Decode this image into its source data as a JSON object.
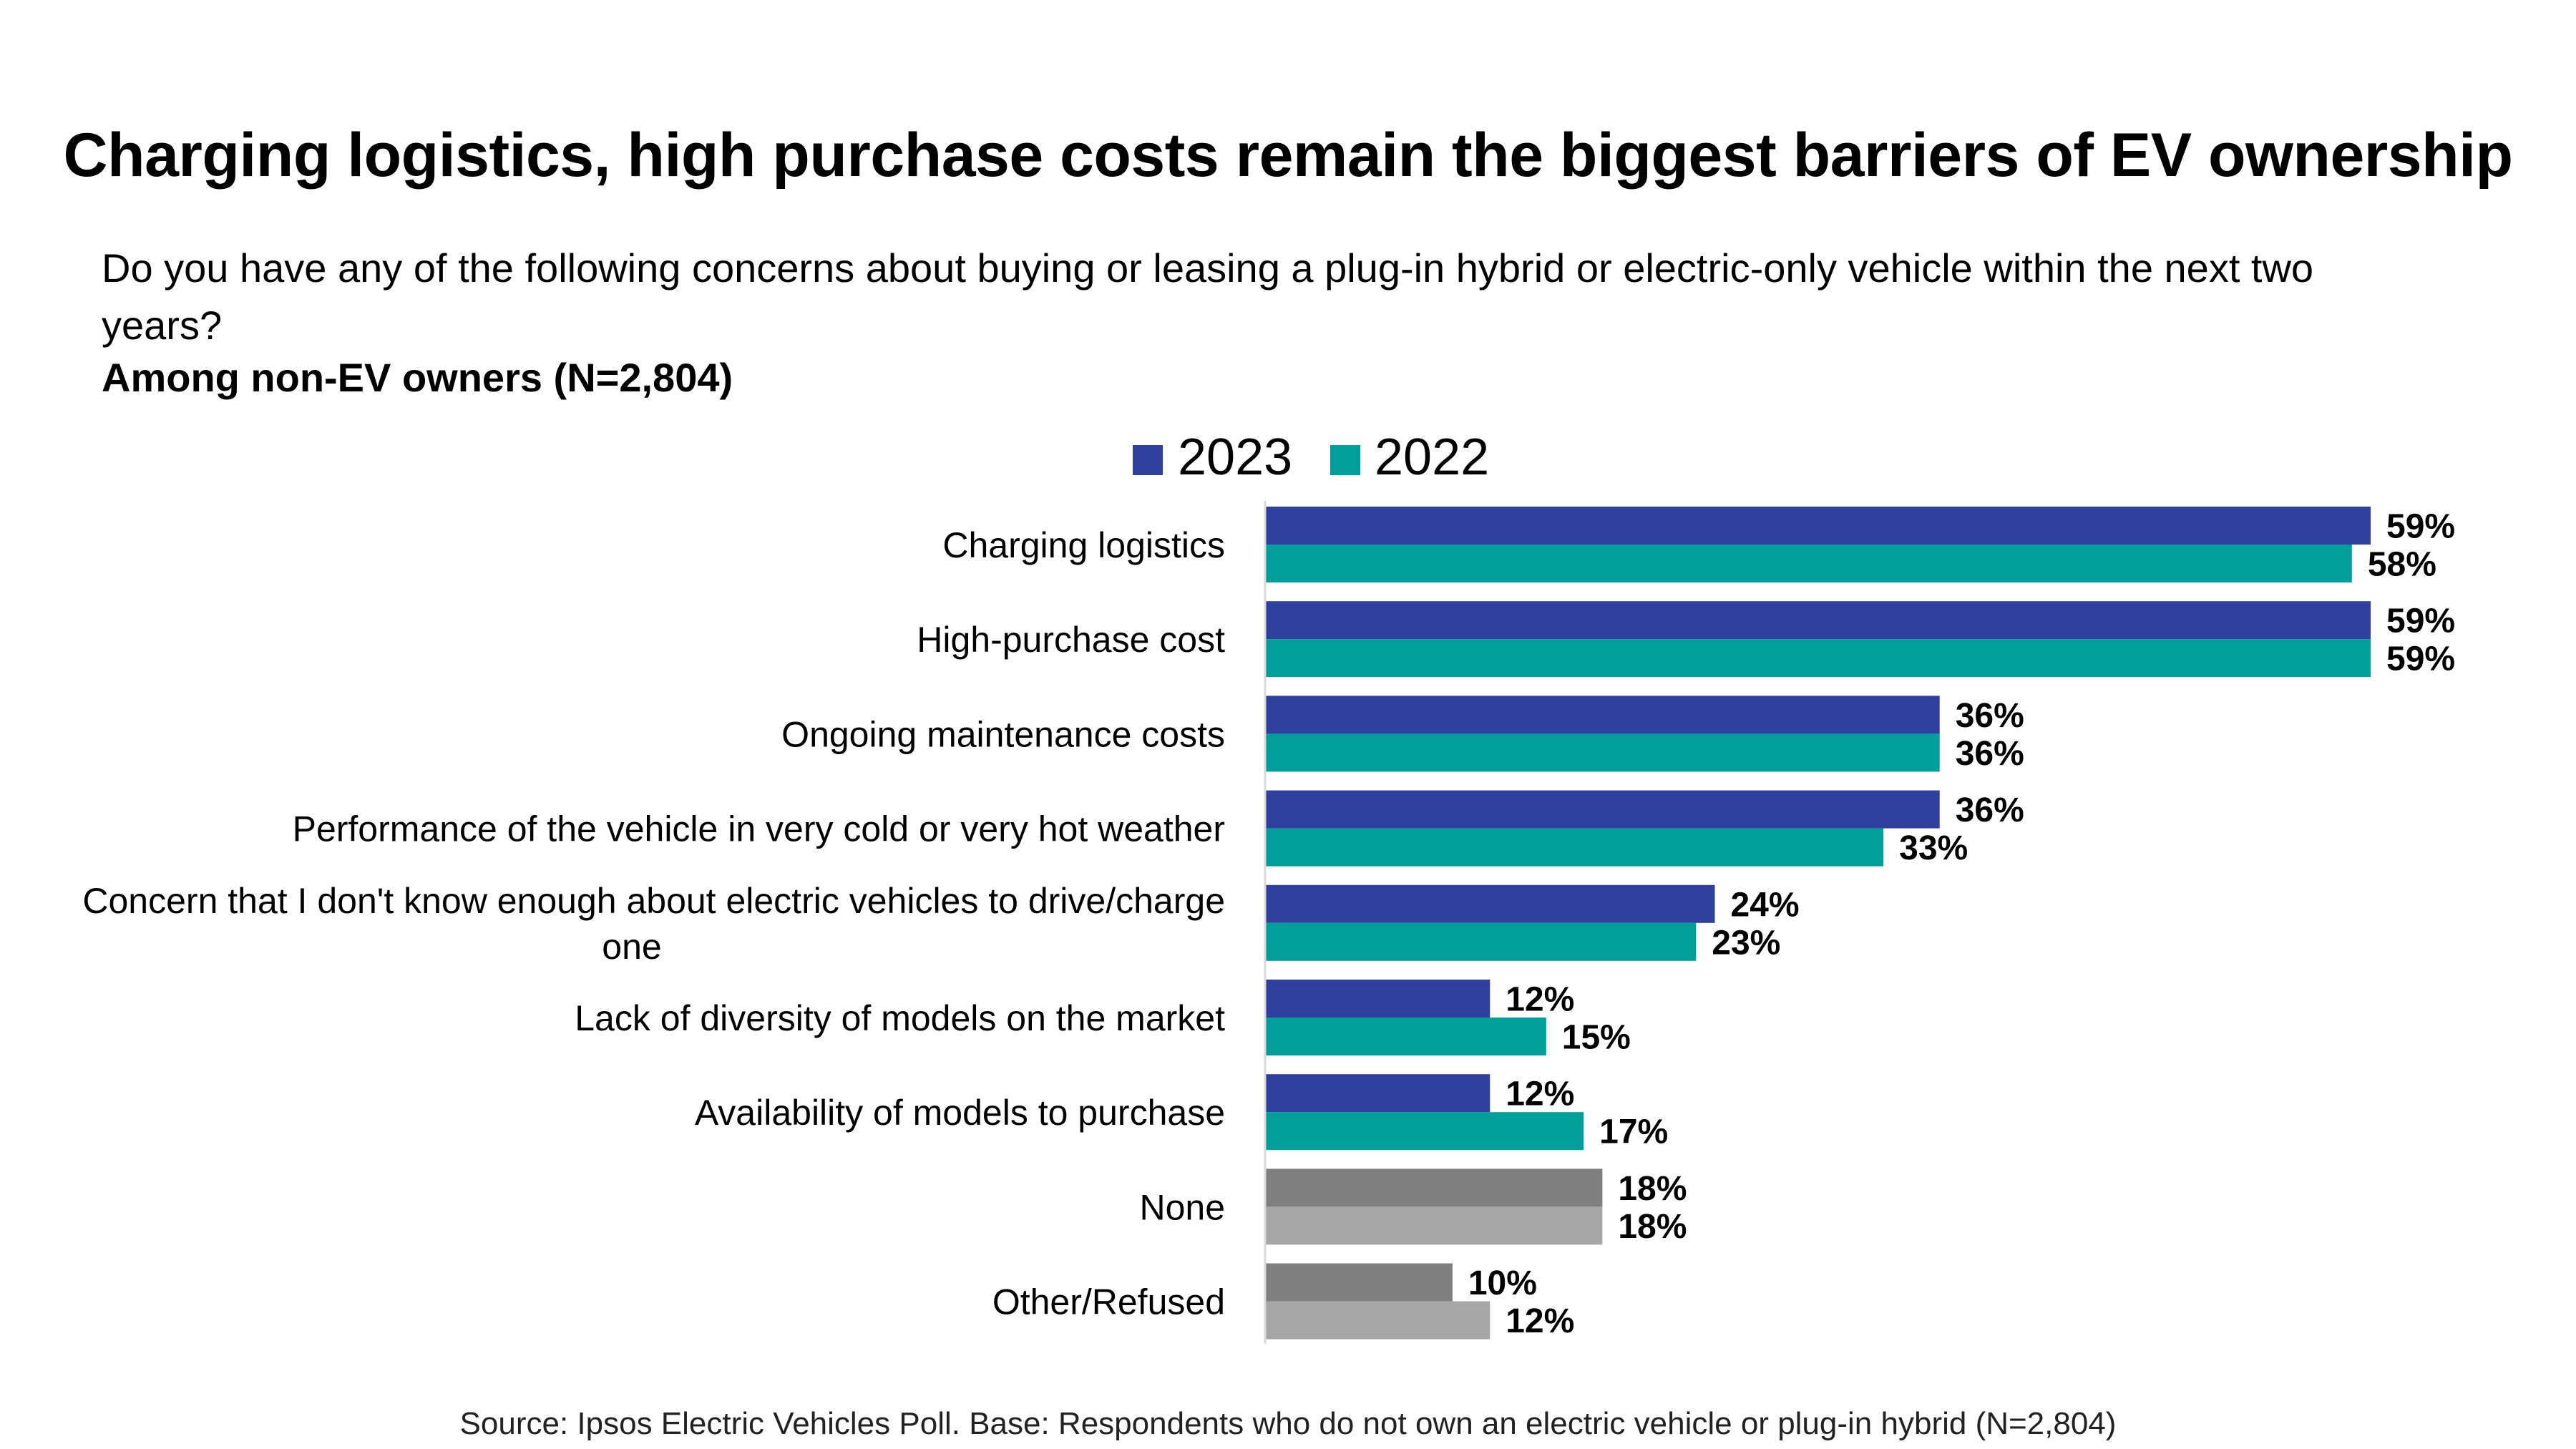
{
  "title": "Charging logistics, high purchase costs remain the biggest barriers of EV ownership",
  "question": "Do you have any of the following concerns about buying or leasing a plug-in hybrid or electric-only vehicle within the next two years?",
  "base_note": "Among non-EV owners (N=2,804)",
  "source": "Source: Ipsos Electric Vehicles Poll. Base: Respondents who do not own an electric vehicle or plug-in hybrid (N=2,804)",
  "colors": {
    "series_2023": "#2E3F9E",
    "series_2022": "#009E9A",
    "neutral_2023": "#7F7F7F",
    "neutral_2022": "#A6A6A6",
    "axis": "#D9D9D9"
  },
  "chart_data": {
    "type": "bar",
    "orientation": "horizontal",
    "categories": [
      [
        "Charging logistics"
      ],
      [
        "High-purchase cost"
      ],
      [
        "Ongoing maintenance costs"
      ],
      [
        "Performance of the vehicle in very cold or very hot weather"
      ],
      [
        "Concern that I don't know enough about electric vehicles to drive/charge",
        "one"
      ],
      [
        "Lack of diversity of models on the market"
      ],
      [
        "Availability of models to purchase"
      ],
      [
        "None"
      ],
      [
        "Other/Refused"
      ]
    ],
    "series": [
      {
        "name": "2023",
        "values": [
          59,
          59,
          36,
          36,
          24,
          12,
          12,
          18,
          10
        ]
      },
      {
        "name": "2022",
        "values": [
          58,
          59,
          36,
          33,
          23,
          15,
          17,
          18,
          12
        ]
      }
    ],
    "data_labels": [
      [
        "59%",
        "59%",
        "36%",
        "36%",
        "24%",
        "12%",
        "12%",
        "18%",
        "10%"
      ],
      [
        "58%",
        "59%",
        "36%",
        "33%",
        "23%",
        "15%",
        "17%",
        "18%",
        "12%"
      ]
    ],
    "neutral_categories": [
      "None",
      "Other/Refused"
    ],
    "xlim": [
      0,
      59
    ],
    "legend": "top",
    "grid": false
  }
}
